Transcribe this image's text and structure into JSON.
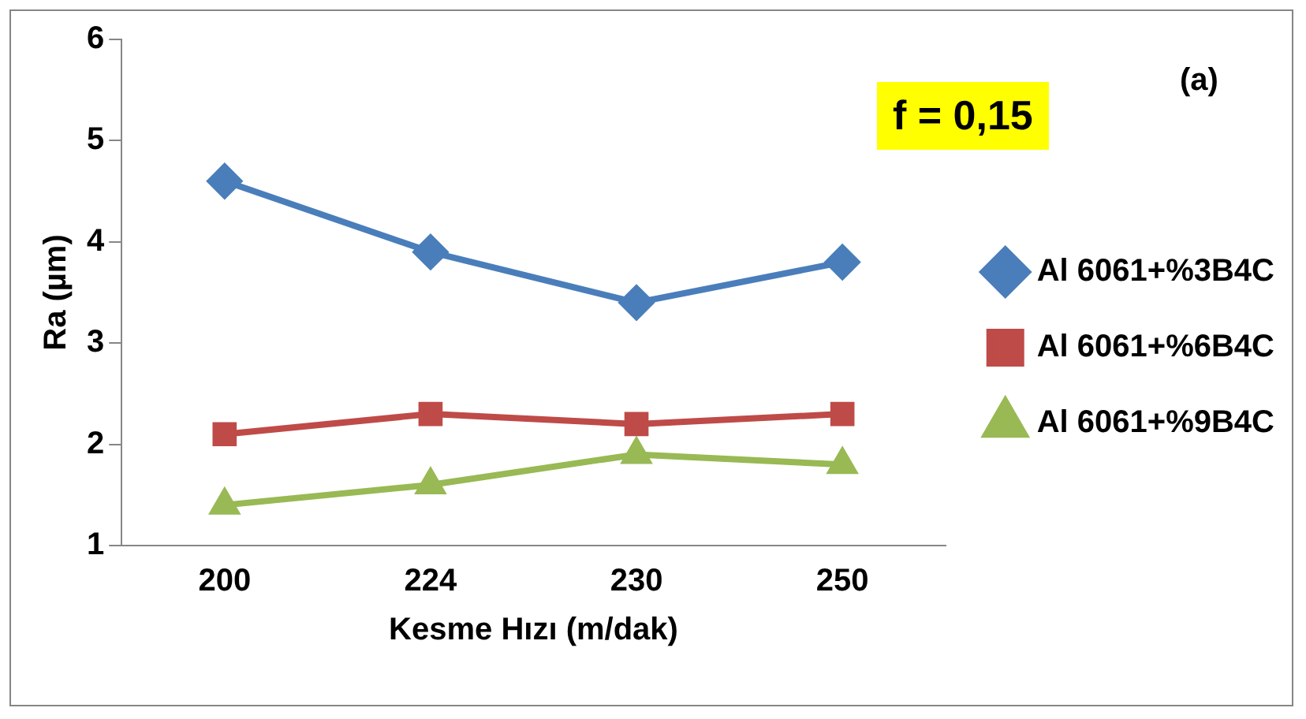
{
  "chart_data": {
    "type": "line",
    "xlabel": "Kesme Hızı (m/dak)",
    "ylabel": "Ra (µm)",
    "categories": [
      "200",
      "224",
      "230",
      "250"
    ],
    "series": [
      {
        "name": "Al 6061+%3B4C",
        "color": "#4a7ebb",
        "values": [
          4.6,
          3.9,
          3.4,
          3.8
        ],
        "marker": "diamond"
      },
      {
        "name": "Al 6061+%6B4C",
        "color": "#be4b48",
        "values": [
          2.1,
          2.3,
          2.2,
          2.3
        ],
        "marker": "square"
      },
      {
        "name": "Al 6061+%9B4C",
        "color": "#98b954",
        "values": [
          1.4,
          1.6,
          1.9,
          1.8
        ],
        "marker": "triangle"
      }
    ],
    "ylim": [
      1,
      6
    ],
    "yticks": [
      1,
      2,
      3,
      4,
      5,
      6
    ],
    "grid": false,
    "legend": "right",
    "annotations": [
      "f = 0,15",
      "(a)"
    ]
  }
}
